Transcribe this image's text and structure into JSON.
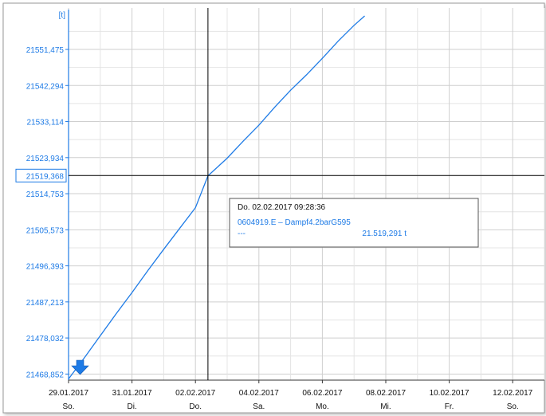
{
  "chart_data": {
    "type": "line",
    "unit_label": "[t]",
    "ylim": [
      21467.3,
      21560.0
    ],
    "yticks": [
      "21551,475",
      "21542,294",
      "21533,114",
      "21523,934",
      "21514,753",
      "21505,573",
      "21496,393",
      "21487,213",
      "21478,032",
      "21468,852"
    ],
    "ytick_values": [
      21551.475,
      21542.294,
      21533.114,
      21523.934,
      21514.753,
      21505.573,
      21496.393,
      21487.213,
      21478.032,
      21468.852
    ],
    "xlim": [
      "2017-01-29T00:00",
      "2017-02-13T00:00"
    ],
    "xticks": [
      {
        "date": "29.01.2017",
        "day": "So.",
        "t": "2017-01-29T00:00"
      },
      {
        "date": "31.01.2017",
        "day": "Di.",
        "t": "2017-01-31T00:00"
      },
      {
        "date": "02.02.2017",
        "day": "Do.",
        "t": "2017-02-02T00:00"
      },
      {
        "date": "04.02.2017",
        "day": "Sa.",
        "t": "2017-02-04T00:00"
      },
      {
        "date": "06.02.2017",
        "day": "Mo.",
        "t": "2017-02-06T00:00"
      },
      {
        "date": "08.02.2017",
        "day": "Mi.",
        "t": "2017-02-08T00:00"
      },
      {
        "date": "10.02.2017",
        "day": "Fr.",
        "t": "2017-02-10T00:00"
      },
      {
        "date": "12.02.2017",
        "day": "So.",
        "t": "2017-02-12T00:00"
      }
    ],
    "grid": true,
    "series": [
      {
        "name": "0604919.E – Dampf4.2barG595",
        "color": "#1e7be6",
        "points": [
          [
            "2017-01-29T00:00",
            21467.6
          ],
          [
            "2017-01-29T12:00",
            21473.0
          ],
          [
            "2017-01-30T00:00",
            21478.6
          ],
          [
            "2017-01-30T12:00",
            21484.2
          ],
          [
            "2017-01-31T00:00",
            21489.6
          ],
          [
            "2017-01-31T12:00",
            21495.2
          ],
          [
            "2017-02-01T00:00",
            21500.6
          ],
          [
            "2017-02-01T12:00",
            21505.9
          ],
          [
            "2017-02-02T00:00",
            21511.2
          ],
          [
            "2017-02-02T09:28",
            21519.3
          ],
          [
            "2017-02-03T00:00",
            21523.8
          ],
          [
            "2017-02-03T12:00",
            21528.1
          ],
          [
            "2017-02-04T00:00",
            21532.2
          ],
          [
            "2017-02-04T12:00",
            21536.8
          ],
          [
            "2017-02-05T00:00",
            21541.1
          ],
          [
            "2017-02-05T12:00",
            21545.0
          ],
          [
            "2017-02-06T00:00",
            21549.2
          ],
          [
            "2017-02-06T12:00",
            21553.6
          ],
          [
            "2017-02-07T00:00",
            21557.6
          ],
          [
            "2017-02-07T08:00",
            21560.0
          ]
        ]
      }
    ],
    "crosshair": {
      "t": "2017-02-02T09:28",
      "y_label": "21519,368",
      "y": 21519.368
    },
    "tooltip": {
      "datetime": "Do. 02.02.2017 09:28:36",
      "series": "0604919.E – Dampf4.2barG595",
      "dash": "---",
      "value": "21.519,291 t"
    }
  }
}
